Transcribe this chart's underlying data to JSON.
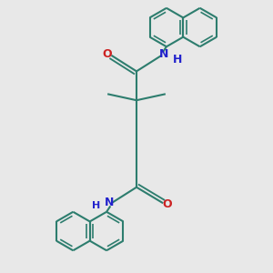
{
  "bg_color": "#e8e8e8",
  "bond_color": "#2d7d6e",
  "n_color": "#2222cc",
  "o_color": "#cc2222",
  "lw": 1.5,
  "lw_double_inner": 1.2,
  "fig_size": [
    3.0,
    3.0
  ],
  "dpi": 100,
  "xlim": [
    -1.8,
    1.8
  ],
  "ylim": [
    -2.8,
    2.8
  ]
}
